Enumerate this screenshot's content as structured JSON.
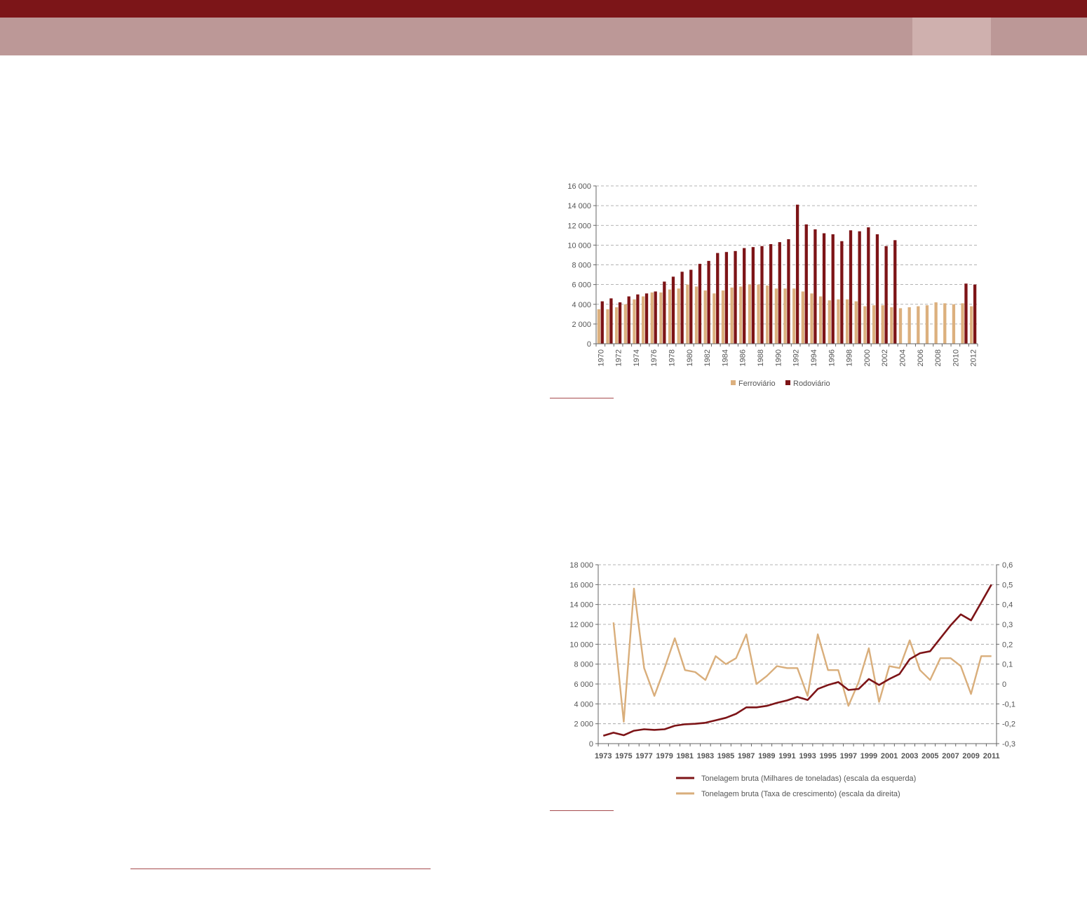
{
  "colors": {
    "header_dark": "#7c1518",
    "header_light": "#bc9897",
    "header_tab": "#cfb0ae",
    "rodoviario": "#7d1417",
    "ferroviario": "#dcb07e",
    "line_tonnage": "#7d1417",
    "line_growth": "#d9ae7b",
    "grid": "#9a9a9a"
  },
  "chart_data": [
    {
      "type": "bar",
      "ylim": [
        0,
        16000
      ],
      "yticks": [
        "0",
        "2 000",
        "4 000",
        "6 000",
        "8 000",
        "10 000",
        "12 000",
        "14 000",
        "16 000"
      ],
      "categories": [
        "1970",
        "1971",
        "1972",
        "1973",
        "1974",
        "1975",
        "1976",
        "1977",
        "1978",
        "1979",
        "1980",
        "1981",
        "1982",
        "1983",
        "1984",
        "1985",
        "1986",
        "1987",
        "1988",
        "1989",
        "1990",
        "1991",
        "1992",
        "1993",
        "1994",
        "1995",
        "1996",
        "1997",
        "1998",
        "1999",
        "2000",
        "2001",
        "2002",
        "2003",
        "2004",
        "2005",
        "2006",
        "2007",
        "2008",
        "2009",
        "2010",
        "2011",
        "2012"
      ],
      "xtick_labels": [
        "1970",
        "1972",
        "1974",
        "1976",
        "1978",
        "1980",
        "1982",
        "1984",
        "1986",
        "1988",
        "1990",
        "1992",
        "1994",
        "1996",
        "1998",
        "2000",
        "2002",
        "2004",
        "2006",
        "2008",
        "2010",
        "2012"
      ],
      "series": [
        {
          "name": "Ferroviário",
          "values": [
            3500,
            3500,
            3700,
            4000,
            4500,
            4800,
            5200,
            5200,
            5500,
            5600,
            6000,
            5800,
            5400,
            5100,
            5400,
            5700,
            5800,
            6000,
            6000,
            5900,
            5600,
            5600,
            5600,
            5300,
            5100,
            4800,
            4400,
            4500,
            4500,
            4300,
            3800,
            3900,
            3900,
            3700,
            3600,
            3700,
            3800,
            3900,
            4200,
            4100,
            4000,
            4100,
            3800
          ]
        },
        {
          "name": "Rodoviário",
          "values": [
            4300,
            4600,
            4200,
            4800,
            5000,
            5100,
            5300,
            6300,
            6800,
            7300,
            7500,
            8100,
            8400,
            9200,
            9300,
            9400,
            9700,
            9800,
            9900,
            10100,
            10300,
            10600,
            14100,
            12100,
            11600,
            11200,
            11100,
            10400,
            11500,
            11400,
            11800,
            11100,
            9900,
            10500,
            null,
            null,
            null,
            null,
            null,
            null,
            null,
            6100,
            6000
          ]
        }
      ],
      "legend": [
        "Ferroviário",
        "Rodoviário"
      ],
      "legend_position": "bottom"
    },
    {
      "type": "line",
      "y_left_lim": [
        0,
        18000
      ],
      "y_right_lim": [
        -0.3,
        0.6
      ],
      "yticks_left": [
        "0",
        "2 000",
        "4 000",
        "6 000",
        "8 000",
        "10 000",
        "12 000",
        "14 000",
        "16 000",
        "18 000"
      ],
      "yticks_right": [
        "-0,3",
        "-0,2",
        "-0,1",
        "0",
        "0,1",
        "0,2",
        "0,3",
        "0,4",
        "0,5",
        "0,6"
      ],
      "x": [
        1973,
        1974,
        1975,
        1976,
        1977,
        1978,
        1979,
        1980,
        1981,
        1982,
        1983,
        1984,
        1985,
        1986,
        1987,
        1988,
        1989,
        1990,
        1991,
        1992,
        1993,
        1994,
        1995,
        1996,
        1997,
        1998,
        1999,
        2000,
        2001,
        2002,
        2003,
        2004,
        2005,
        2006,
        2007,
        2008,
        2009,
        2010,
        2011
      ],
      "xtick_labels": [
        "1973",
        "1975",
        "1977",
        "1979",
        "1981",
        "1983",
        "1985",
        "1987",
        "1989",
        "1991",
        "1993",
        "1995",
        "1997",
        "1999",
        "2001",
        "2003",
        "2005",
        "2007",
        "2009",
        "2011"
      ],
      "series": [
        {
          "name": "Tonelagem bruta (Milhares de toneladas) (escala da esquerda)",
          "axis": "left",
          "values": [
            800,
            1100,
            850,
            1300,
            1450,
            1380,
            1450,
            1800,
            1950,
            2000,
            2100,
            2350,
            2600,
            3000,
            3650,
            3650,
            3800,
            4100,
            4350,
            4700,
            4400,
            5500,
            5900,
            6200,
            5400,
            5500,
            6500,
            5900,
            6500,
            7000,
            8500,
            9100,
            9300,
            10600,
            11900,
            13000,
            12400,
            14200,
            16000
          ]
        },
        {
          "name": "Tonelagem bruta (Taxa de crescimento) (escala da direita)",
          "axis": "right",
          "values": [
            null,
            0.31,
            -0.19,
            0.48,
            0.08,
            -0.06,
            0.08,
            0.23,
            0.07,
            0.06,
            0.02,
            0.14,
            0.1,
            0.13,
            0.25,
            0.0,
            0.04,
            0.09,
            0.08,
            0.08,
            -0.06,
            0.25,
            0.07,
            0.07,
            -0.11,
            0.01,
            0.18,
            -0.09,
            0.09,
            0.08,
            0.22,
            0.07,
            0.02,
            0.13,
            0.13,
            0.09,
            -0.05,
            0.14,
            0.14
          ]
        }
      ],
      "legend_position": "bottom"
    }
  ]
}
